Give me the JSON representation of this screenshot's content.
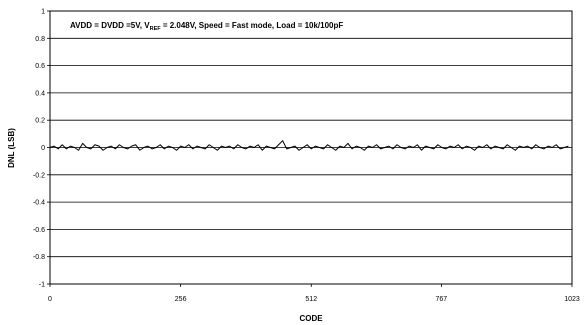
{
  "chart_data": {
    "type": "line",
    "title": "",
    "annotation": {
      "prefix": "AVDD = DVDD =5V, V",
      "subscript": "REF",
      "suffix": " =  2.048V, Speed = Fast mode, Load = 10k/100pF"
    },
    "xlabel": "CODE",
    "ylabel": "DNL (LSB)",
    "xlim": [
      0,
      1023
    ],
    "ylim": [
      -1,
      1
    ],
    "x_ticks": [
      0,
      256,
      512,
      767,
      1023
    ],
    "x_tick_labels": [
      "0",
      "256",
      "512",
      "767",
      "1023"
    ],
    "y_ticks": [
      -1,
      -0.8,
      -0.6,
      -0.4,
      -0.2,
      0,
      0.2,
      0.4,
      0.6,
      0.8,
      1
    ],
    "y_tick_labels": [
      "-1",
      "-0.8",
      "-0.6",
      "-0.4",
      "-0.2",
      "0",
      "0.2",
      "0.4",
      "0.6",
      "0.8",
      "1"
    ],
    "grid": "horizontal",
    "legend": "none",
    "series": [
      {
        "color": "#000000",
        "x_start": 0,
        "x_step": 8,
        "values": [
          0.0,
          0.01,
          -0.01,
          0.02,
          -0.01,
          0.01,
          0.0,
          -0.02,
          0.03,
          0.0,
          -0.01,
          0.02,
          0.01,
          -0.02,
          0.0,
          0.01,
          -0.01,
          0.02,
          0.0,
          -0.01,
          0.01,
          0.02,
          -0.02,
          0.0,
          0.01,
          -0.01,
          0.0,
          0.02,
          -0.01,
          0.01,
          0.0,
          -0.02,
          0.01,
          0.0,
          0.02,
          -0.01,
          0.01,
          0.0,
          -0.01,
          0.02,
          0.0,
          -0.02,
          0.01,
          0.0,
          0.01,
          -0.01,
          0.02,
          0.0,
          -0.01,
          0.01,
          0.0,
          0.02,
          -0.02,
          0.01,
          0.0,
          -0.01,
          0.02,
          0.05,
          -0.01,
          0.0,
          0.01,
          -0.02,
          0.0,
          0.02,
          -0.01,
          0.01,
          0.0,
          -0.01,
          0.02,
          0.0,
          -0.02,
          0.01,
          0.0,
          0.03,
          -0.01,
          0.01,
          0.0,
          -0.02,
          0.01,
          0.0,
          0.02,
          -0.01,
          0.0,
          0.01,
          -0.01,
          0.02,
          0.0,
          -0.01,
          0.01,
          0.0,
          0.02,
          -0.02,
          0.01,
          0.0,
          -0.01,
          0.02,
          0.0,
          -0.01,
          0.01,
          0.0,
          0.02,
          -0.01,
          0.01,
          0.0,
          -0.02,
          0.01,
          0.0,
          0.02,
          -0.01,
          0.01,
          0.0,
          -0.01,
          0.02,
          0.0,
          -0.02,
          0.01,
          0.0,
          0.01,
          -0.01,
          0.02,
          0.0,
          -0.01,
          0.01,
          0.0,
          0.02,
          -0.01,
          0.0,
          0.01
        ]
      }
    ]
  }
}
